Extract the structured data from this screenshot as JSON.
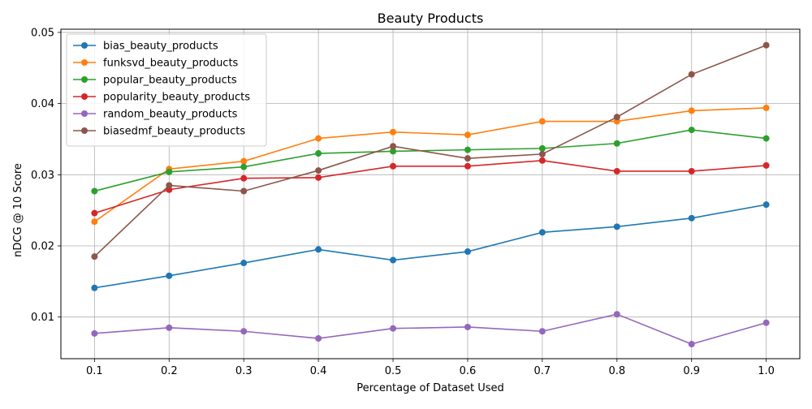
{
  "chart_data": {
    "type": "line",
    "title": "Beauty Products",
    "xlabel": "Percentage of Dataset Used",
    "ylabel": "nDCG @ 10 Score",
    "x": [
      0.1,
      0.2,
      0.3,
      0.4,
      0.5,
      0.6,
      0.7,
      0.8,
      0.9,
      1.0
    ],
    "x_tick_labels": [
      "0.1",
      "0.2",
      "0.3",
      "0.4",
      "0.5",
      "0.6",
      "0.7",
      "0.8",
      "0.9",
      "1.0"
    ],
    "y_ticks": [
      0.01,
      0.02,
      0.03,
      0.04,
      0.05
    ],
    "y_tick_labels": [
      "0.01",
      "0.02",
      "0.03",
      "0.04",
      "0.05"
    ],
    "xlim": [
      0.055,
      1.045
    ],
    "ylim": [
      0.00415,
      0.05045
    ],
    "grid": true,
    "legend_position": "top-left",
    "series": [
      {
        "name": "bias_beauty_products",
        "color": "#1f77b4",
        "values": [
          0.0141,
          0.0158,
          0.0176,
          0.0195,
          0.018,
          0.0192,
          0.0219,
          0.0227,
          0.0239,
          0.0258
        ]
      },
      {
        "name": "funksvd_beauty_products",
        "color": "#ff7f0e",
        "values": [
          0.0234,
          0.0308,
          0.0319,
          0.0351,
          0.036,
          0.0356,
          0.0375,
          0.0375,
          0.039,
          0.0394
        ]
      },
      {
        "name": "popular_beauty_products",
        "color": "#2ca02c",
        "values": [
          0.0277,
          0.0304,
          0.0311,
          0.033,
          0.0333,
          0.0335,
          0.0337,
          0.0344,
          0.0363,
          0.0351
        ]
      },
      {
        "name": "popularity_beauty_products",
        "color": "#d62728",
        "values": [
          0.0246,
          0.0279,
          0.0295,
          0.0296,
          0.0312,
          0.0312,
          0.032,
          0.0305,
          0.0305,
          0.0313
        ]
      },
      {
        "name": "random_beauty_products",
        "color": "#9467bd",
        "values": [
          0.0077,
          0.0085,
          0.008,
          0.007,
          0.0084,
          0.0086,
          0.008,
          0.0104,
          0.0062,
          0.0092
        ]
      },
      {
        "name": "biasedmf_beauty_products",
        "color": "#8c564b",
        "values": [
          0.0185,
          0.0285,
          0.0277,
          0.0306,
          0.034,
          0.0323,
          0.0329,
          0.0381,
          0.0441,
          0.0482
        ]
      }
    ]
  }
}
